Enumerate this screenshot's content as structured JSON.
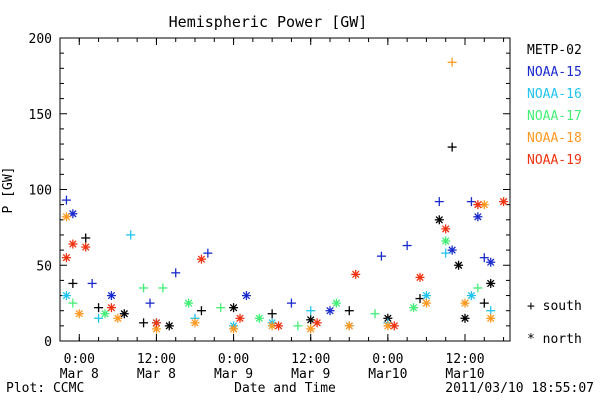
{
  "chart_data": {
    "type": "scatter",
    "title": "Hemispheric Power [GW]",
    "xlabel": "Date and Time",
    "ylabel": "P [GW]",
    "ylim": [
      0,
      200
    ],
    "xlim": [
      "2011-03-07T21:00",
      "2011-03-10T19:00"
    ],
    "yticks": [
      0,
      50,
      100,
      150,
      200
    ],
    "xticks": [
      {
        "time": "2011-03-08T00:00",
        "line1": "0:00",
        "line2": "Mar 8"
      },
      {
        "time": "2011-03-08T12:00",
        "line1": "12:00",
        "line2": "Mar 8"
      },
      {
        "time": "2011-03-09T00:00",
        "line1": "0:00",
        "line2": "Mar 9"
      },
      {
        "time": "2011-03-09T12:00",
        "line1": "12:00",
        "line2": "Mar 9"
      },
      {
        "time": "2011-03-10T00:00",
        "line1": "0:00",
        "line2": "Mar10"
      },
      {
        "time": "2011-03-10T12:00",
        "line1": "12:00",
        "line2": "Mar10"
      }
    ],
    "grid": false,
    "legend_position": "right",
    "marker_legend": {
      "south": "+ south",
      "north": "* north"
    },
    "series": [
      {
        "name": "METP-02",
        "color": "#000000",
        "points": [
          [
            "2011-03-07T23:00",
            38,
            "south"
          ],
          [
            "2011-03-08T01:00",
            68,
            "south"
          ],
          [
            "2011-03-08T03:00",
            22,
            "south"
          ],
          [
            "2011-03-08T07:00",
            18,
            "north"
          ],
          [
            "2011-03-08T10:00",
            12,
            "south"
          ],
          [
            "2011-03-08T14:00",
            10,
            "north"
          ],
          [
            "2011-03-08T19:00",
            20,
            "south"
          ],
          [
            "2011-03-09T00:00",
            22,
            "north"
          ],
          [
            "2011-03-09T06:00",
            18,
            "south"
          ],
          [
            "2011-03-09T12:00",
            14,
            "north"
          ],
          [
            "2011-03-09T18:00",
            20,
            "south"
          ],
          [
            "2011-03-10T00:00",
            15,
            "north"
          ],
          [
            "2011-03-10T05:00",
            28,
            "south"
          ],
          [
            "2011-03-10T08:00",
            80,
            "north"
          ],
          [
            "2011-03-10T10:00",
            128,
            "south"
          ],
          [
            "2011-03-10T11:00",
            50,
            "north"
          ],
          [
            "2011-03-10T12:00",
            15,
            "north"
          ],
          [
            "2011-03-10T15:00",
            25,
            "south"
          ],
          [
            "2011-03-10T16:00",
            38,
            "north"
          ]
        ]
      },
      {
        "name": "NOAA-15",
        "color": "#1a2bcc",
        "points": [
          [
            "2011-03-07T22:00",
            93,
            "south"
          ],
          [
            "2011-03-07T23:00",
            84,
            "north"
          ],
          [
            "2011-03-08T02:00",
            38,
            "south"
          ],
          [
            "2011-03-08T05:00",
            30,
            "north"
          ],
          [
            "2011-03-08T11:00",
            25,
            "south"
          ],
          [
            "2011-03-08T15:00",
            45,
            "south"
          ],
          [
            "2011-03-08T20:00",
            58,
            "south"
          ],
          [
            "2011-03-09T02:00",
            30,
            "north"
          ],
          [
            "2011-03-09T09:00",
            25,
            "south"
          ],
          [
            "2011-03-09T15:00",
            20,
            "north"
          ],
          [
            "2011-03-09T23:00",
            56,
            "south"
          ],
          [
            "2011-03-10T03:00",
            63,
            "south"
          ],
          [
            "2011-03-10T08:00",
            92,
            "south"
          ],
          [
            "2011-03-10T10:00",
            60,
            "north"
          ],
          [
            "2011-03-10T13:00",
            92,
            "south"
          ],
          [
            "2011-03-10T14:00",
            82,
            "north"
          ],
          [
            "2011-03-10T15:00",
            55,
            "south"
          ],
          [
            "2011-03-10T16:00",
            52,
            "north"
          ]
        ]
      },
      {
        "name": "NOAA-16",
        "color": "#22c4ee",
        "points": [
          [
            "2011-03-07T22:00",
            30,
            "north"
          ],
          [
            "2011-03-08T03:00",
            15,
            "south"
          ],
          [
            "2011-03-08T08:00",
            70,
            "south"
          ],
          [
            "2011-03-08T12:00",
            12,
            "north"
          ],
          [
            "2011-03-08T18:00",
            15,
            "south"
          ],
          [
            "2011-03-09T00:00",
            10,
            "north"
          ],
          [
            "2011-03-09T06:00",
            12,
            "north"
          ],
          [
            "2011-03-09T12:00",
            20,
            "south"
          ],
          [
            "2011-03-09T18:00",
            10,
            "north"
          ],
          [
            "2011-03-10T00:00",
            12,
            "south"
          ],
          [
            "2011-03-10T06:00",
            30,
            "north"
          ],
          [
            "2011-03-10T09:00",
            58,
            "south"
          ],
          [
            "2011-03-10T13:00",
            30,
            "north"
          ],
          [
            "2011-03-10T16:00",
            20,
            "south"
          ]
        ]
      },
      {
        "name": "NOAA-17",
        "color": "#44ee77",
        "points": [
          [
            "2011-03-07T23:00",
            25,
            "south"
          ],
          [
            "2011-03-08T04:00",
            18,
            "north"
          ],
          [
            "2011-03-08T10:00",
            35,
            "south"
          ],
          [
            "2011-03-08T13:00",
            35,
            "south"
          ],
          [
            "2011-03-08T17:00",
            25,
            "north"
          ],
          [
            "2011-03-08T22:00",
            22,
            "south"
          ],
          [
            "2011-03-09T04:00",
            15,
            "north"
          ],
          [
            "2011-03-09T10:00",
            10,
            "south"
          ],
          [
            "2011-03-09T16:00",
            25,
            "north"
          ],
          [
            "2011-03-09T22:00",
            18,
            "south"
          ],
          [
            "2011-03-10T04:00",
            22,
            "north"
          ],
          [
            "2011-03-10T09:00",
            66,
            "north"
          ],
          [
            "2011-03-10T14:00",
            35,
            "south"
          ]
        ]
      },
      {
        "name": "NOAA-18",
        "color": "#ff9922",
        "points": [
          [
            "2011-03-07T22:00",
            82,
            "north"
          ],
          [
            "2011-03-08T00:00",
            18,
            "north"
          ],
          [
            "2011-03-08T06:00",
            15,
            "north"
          ],
          [
            "2011-03-08T12:00",
            8,
            "north"
          ],
          [
            "2011-03-08T18:00",
            12,
            "north"
          ],
          [
            "2011-03-09T00:00",
            8,
            "north"
          ],
          [
            "2011-03-09T06:00",
            10,
            "north"
          ],
          [
            "2011-03-09T12:00",
            8,
            "north"
          ],
          [
            "2011-03-09T18:00",
            10,
            "north"
          ],
          [
            "2011-03-10T00:00",
            10,
            "north"
          ],
          [
            "2011-03-10T06:00",
            25,
            "north"
          ],
          [
            "2011-03-10T10:00",
            184,
            "south"
          ],
          [
            "2011-03-10T12:00",
            25,
            "north"
          ],
          [
            "2011-03-10T15:00",
            90,
            "north"
          ],
          [
            "2011-03-10T16:00",
            15,
            "north"
          ]
        ]
      },
      {
        "name": "NOAA-19",
        "color": "#ee3311",
        "points": [
          [
            "2011-03-07T22:00",
            55,
            "north"
          ],
          [
            "2011-03-07T23:00",
            64,
            "north"
          ],
          [
            "2011-03-08T01:00",
            62,
            "north"
          ],
          [
            "2011-03-08T05:00",
            22,
            "north"
          ],
          [
            "2011-03-08T12:00",
            12,
            "north"
          ],
          [
            "2011-03-08T19:00",
            54,
            "north"
          ],
          [
            "2011-03-09T01:00",
            15,
            "north"
          ],
          [
            "2011-03-09T07:00",
            10,
            "north"
          ],
          [
            "2011-03-09T13:00",
            12,
            "north"
          ],
          [
            "2011-03-09T19:00",
            44,
            "north"
          ],
          [
            "2011-03-10T01:00",
            10,
            "north"
          ],
          [
            "2011-03-10T05:00",
            42,
            "north"
          ],
          [
            "2011-03-10T09:00",
            74,
            "north"
          ],
          [
            "2011-03-10T14:00",
            90,
            "north"
          ],
          [
            "2011-03-10T18:00",
            92,
            "north"
          ]
        ]
      }
    ]
  },
  "footer": {
    "credit": "Plot: CCMC",
    "timestamp": "2011/03/10 18:55:07"
  }
}
